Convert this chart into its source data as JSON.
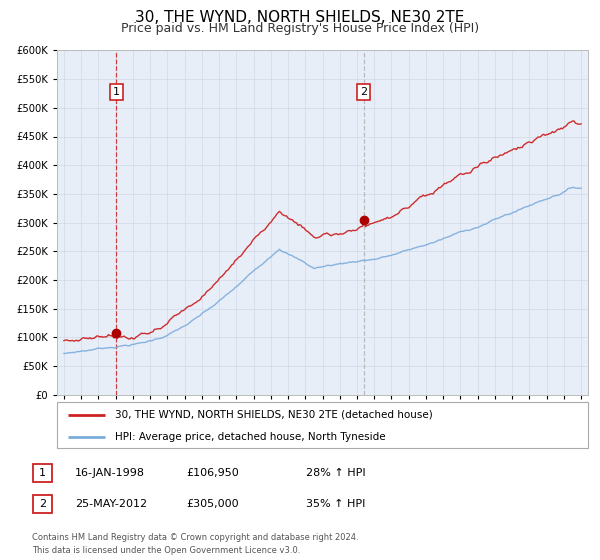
{
  "title": "30, THE WYND, NORTH SHIELDS, NE30 2TE",
  "subtitle": "Price paid vs. HM Land Registry's House Price Index (HPI)",
  "legend_line1": "30, THE WYND, NORTH SHIELDS, NE30 2TE (detached house)",
  "legend_line2": "HPI: Average price, detached house, North Tyneside",
  "sale1_date": "16-JAN-1998",
  "sale1_price": "£106,950",
  "sale1_hpi": "28% ↑ HPI",
  "sale1_year": 1998.04,
  "sale1_value": 106950,
  "sale2_date": "25-MAY-2012",
  "sale2_price": "£305,000",
  "sale2_hpi": "35% ↑ HPI",
  "sale2_year": 2012.39,
  "sale2_value": 305000,
  "red_line_color": "#cc2222",
  "blue_line_color": "#7aacdc",
  "marker_color": "#aa0000",
  "vline1_color": "#cc2222",
  "vline2_color": "#aaaaaa",
  "grid_color": "#d0d8e8",
  "plot_bg_color": "#e8eef8",
  "ylim_min": 0,
  "ylim_max": 600000,
  "footnote": "Contains HM Land Registry data © Crown copyright and database right 2024.\nThis data is licensed under the Open Government Licence v3.0."
}
